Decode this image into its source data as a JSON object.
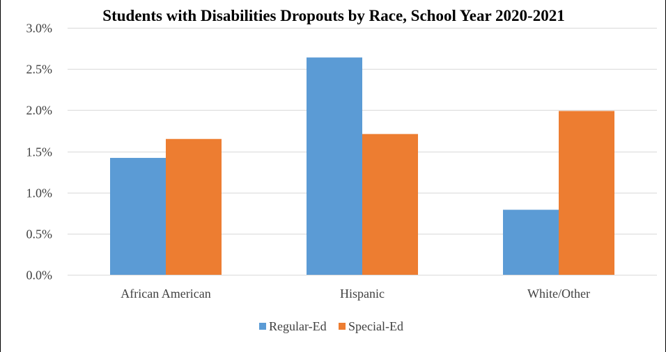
{
  "chart_data": {
    "type": "bar",
    "title": "Students with Disabilities Dropouts by Race, School Year 2020-2021",
    "categories": [
      "African American",
      "Hispanic",
      "White/Other"
    ],
    "series": [
      {
        "name": "Regular-Ed",
        "values": [
          1.42,
          2.64,
          0.79
        ],
        "color": "#5B9BD5"
      },
      {
        "name": "Special-Ed",
        "values": [
          1.65,
          1.71,
          1.99
        ],
        "color": "#ED7D31"
      }
    ],
    "ylim": [
      0,
      3.0
    ],
    "yticks": [
      0,
      0.5,
      1.0,
      1.5,
      2.0,
      2.5,
      3.0
    ],
    "ytick_labels": [
      "0.0%",
      "0.5%",
      "1.0%",
      "1.5%",
      "2.0%",
      "2.5%",
      "3.0%"
    ],
    "xlabel": "",
    "ylabel": "",
    "grid": true,
    "legend": "bottom",
    "gridline_color": "#D9D9D9"
  }
}
